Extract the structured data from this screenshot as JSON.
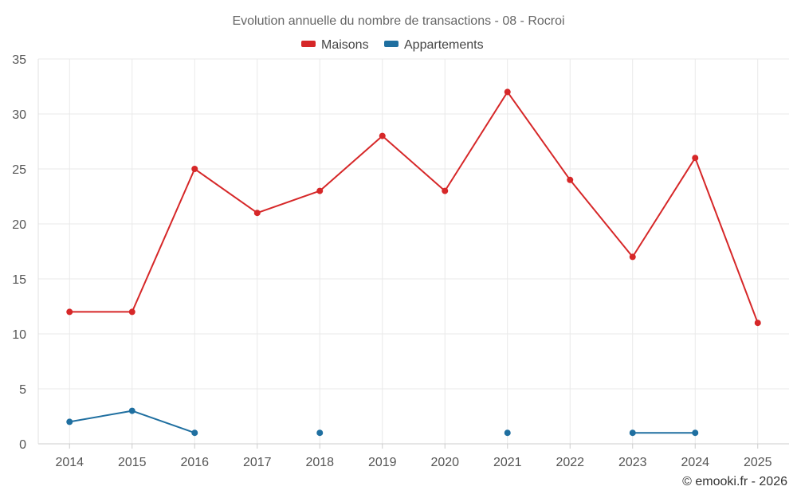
{
  "chart_data": {
    "type": "line",
    "title": "Evolution annuelle du nombre de transactions - 08 - Rocroi",
    "xlabel": "",
    "ylabel": "",
    "ylim": [
      0,
      35
    ],
    "yticks": [
      0,
      5,
      10,
      15,
      20,
      25,
      30,
      35
    ],
    "categories": [
      "2014",
      "2015",
      "2016",
      "2017",
      "2018",
      "2019",
      "2020",
      "2021",
      "2022",
      "2023",
      "2024",
      "2025"
    ],
    "series": [
      {
        "name": "Maisons",
        "color": "#d62728",
        "values": [
          12,
          12,
          25,
          21,
          23,
          28,
          23,
          32,
          24,
          17,
          26,
          11
        ]
      },
      {
        "name": "Appartements",
        "color": "#1f6fa0",
        "values": [
          2,
          3,
          1,
          null,
          1,
          null,
          null,
          1,
          null,
          1,
          1,
          null
        ]
      }
    ],
    "grid": true,
    "legend_position": "top-center",
    "credit": "© emooki.fr - 2026"
  }
}
